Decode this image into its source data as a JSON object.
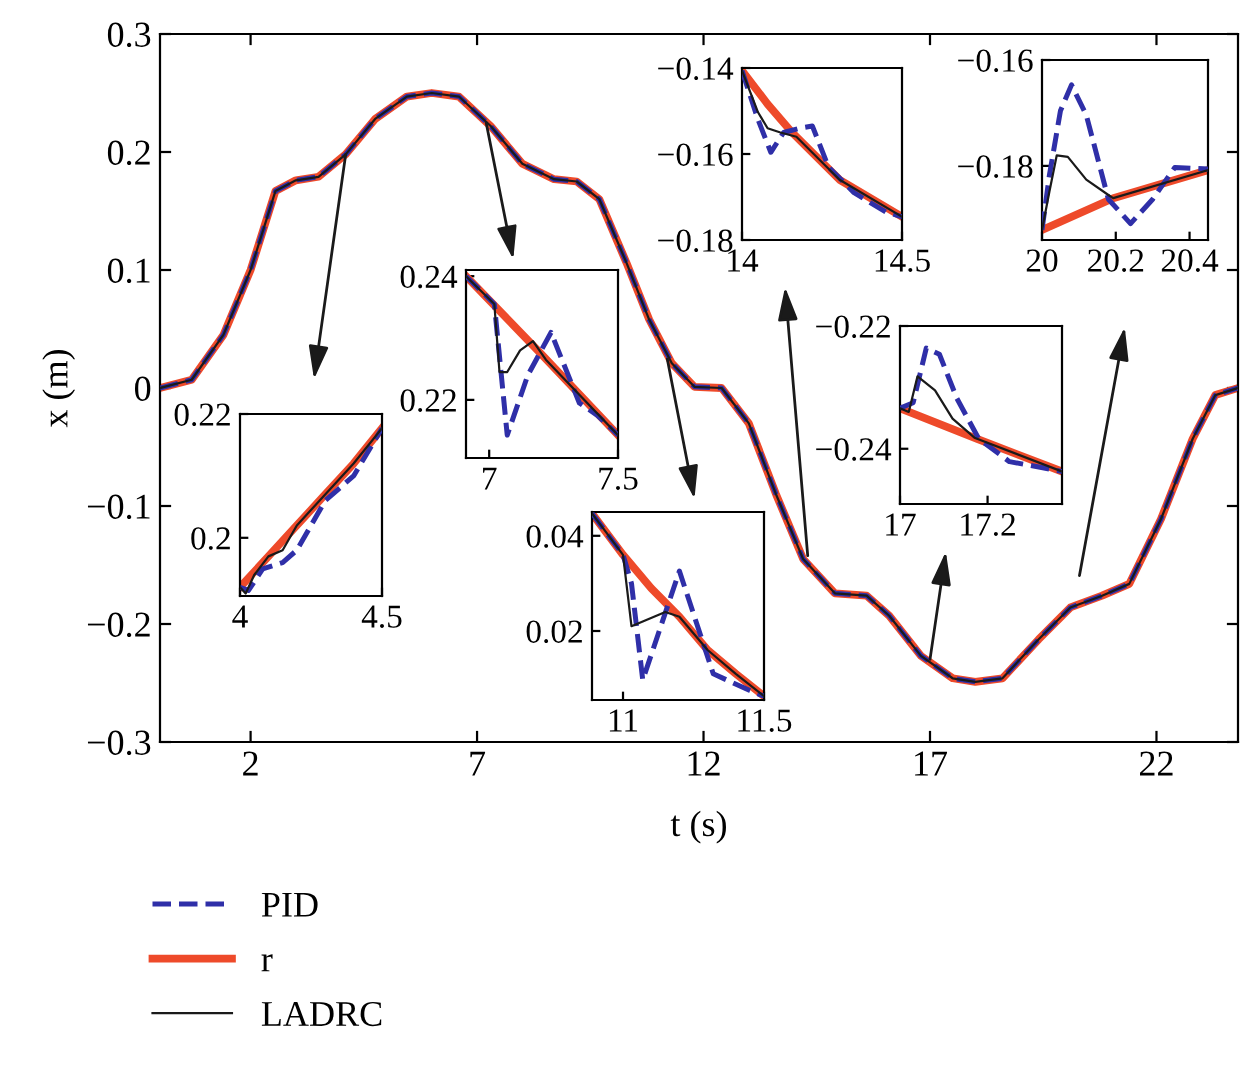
{
  "chart_data": [
    {
      "type": "line",
      "xlabel": "t (s)",
      "ylabel": "x (m)",
      "xlim": [
        0,
        23.8
      ],
      "ylim": [
        -0.3,
        0.3
      ],
      "xticks": [
        2,
        7,
        12,
        17,
        22
      ],
      "yticks": [
        -0.3,
        -0.2,
        -0.1,
        0,
        0.1,
        0.2,
        0.3
      ],
      "grid": false,
      "legend": "bottom",
      "x": [
        0,
        0.7,
        1.4,
        2,
        2.55,
        3,
        3.5,
        4.1,
        4.75,
        5.45,
        6,
        6.6,
        7.3,
        8,
        8.7,
        9.2,
        9.7,
        10.3,
        10.8,
        11.3,
        11.8,
        12.4,
        13,
        13.6,
        14.2,
        14.9,
        15.6,
        16.1,
        16.8,
        17.5,
        18,
        18.6,
        19.4,
        20.1,
        20.8,
        21.4,
        22.1,
        22.8,
        23.3,
        23.8
      ],
      "series": [
        {
          "name": "PID",
          "color": "#2f2fa8",
          "line_style": "dashed",
          "values": [
            0,
            0.007,
            0.045,
            0.1,
            0.167,
            0.176,
            0.179,
            0.198,
            0.228,
            0.247,
            0.25,
            0.247,
            0.222,
            0.19,
            0.177,
            0.175,
            0.16,
            0.106,
            0.058,
            0.021,
            0.001,
            0,
            -0.03,
            -0.09,
            -0.145,
            -0.174,
            -0.176,
            -0.193,
            -0.227,
            -0.246,
            -0.249,
            -0.246,
            -0.213,
            -0.186,
            -0.176,
            -0.166,
            -0.111,
            -0.043,
            -0.006,
            0
          ]
        },
        {
          "name": "r",
          "color": "#ee4a2a",
          "line_style": "solid",
          "values": [
            0,
            0.007,
            0.045,
            0.1,
            0.167,
            0.176,
            0.179,
            0.198,
            0.228,
            0.247,
            0.25,
            0.247,
            0.222,
            0.19,
            0.177,
            0.175,
            0.16,
            0.106,
            0.058,
            0.021,
            0.001,
            0,
            -0.03,
            -0.09,
            -0.145,
            -0.174,
            -0.176,
            -0.193,
            -0.227,
            -0.246,
            -0.249,
            -0.246,
            -0.213,
            -0.186,
            -0.176,
            -0.166,
            -0.111,
            -0.043,
            -0.006,
            0
          ]
        },
        {
          "name": "LADRC",
          "color": "#1a1a1a",
          "line_style": "solid",
          "values": [
            0,
            0.007,
            0.045,
            0.1,
            0.167,
            0.176,
            0.179,
            0.198,
            0.228,
            0.247,
            0.25,
            0.247,
            0.222,
            0.19,
            0.177,
            0.175,
            0.16,
            0.106,
            0.058,
            0.021,
            0.001,
            0,
            -0.03,
            -0.09,
            -0.145,
            -0.174,
            -0.176,
            -0.193,
            -0.227,
            -0.246,
            -0.249,
            -0.246,
            -0.213,
            -0.186,
            -0.176,
            -0.166,
            -0.111,
            -0.043,
            -0.006,
            0
          ]
        }
      ]
    },
    {
      "type": "line",
      "xlim": [
        4,
        4.5
      ],
      "ylim": [
        0.1906,
        0.22
      ],
      "xticks": [
        4,
        4.5
      ],
      "yticks": [
        0.2,
        0.22
      ],
      "grid": false,
      "series": [
        {
          "color": "#2f2fa8",
          "line_style": "dashed",
          "x": [
            4,
            4.03,
            4.08,
            4.15,
            4.2,
            4.3,
            4.35,
            4.4,
            4.5
          ],
          "values": [
            0.192,
            0.1915,
            0.195,
            0.196,
            0.198,
            0.206,
            0.208,
            0.21,
            0.2177
          ]
        },
        {
          "color": "#ee4a2a",
          "line_style": "solid",
          "x": [
            4,
            4.1,
            4.2,
            4.3,
            4.4,
            4.5
          ],
          "values": [
            0.192,
            0.197,
            0.202,
            0.207,
            0.212,
            0.2177
          ]
        },
        {
          "color": "#1a1a1a",
          "line_style": "solid",
          "x": [
            4,
            4.02,
            4.05,
            4.1,
            4.15,
            4.2,
            4.3,
            4.4,
            4.5
          ],
          "values": [
            0.192,
            0.191,
            0.194,
            0.197,
            0.198,
            0.202,
            0.207,
            0.212,
            0.2177
          ]
        }
      ]
    },
    {
      "type": "line",
      "xlim": [
        6.91,
        7.5
      ],
      "ylim": [
        0.2106,
        0.241
      ],
      "xticks": [
        7,
        7.5
      ],
      "yticks": [
        0.22,
        0.24
      ],
      "grid": false,
      "series": [
        {
          "color": "#2f2fa8",
          "line_style": "dashed",
          "x": [
            6.91,
            7.02,
            7.07,
            7.15,
            7.24,
            7.35,
            7.42,
            7.5
          ],
          "values": [
            0.24,
            0.2355,
            0.2143,
            0.224,
            0.2309,
            0.2195,
            0.2175,
            0.2143
          ]
        },
        {
          "color": "#ee4a2a",
          "line_style": "solid",
          "x": [
            6.91,
            7.2,
            7.5
          ],
          "values": [
            0.24,
            0.2275,
            0.2143
          ]
        },
        {
          "color": "#1a1a1a",
          "line_style": "solid",
          "x": [
            6.91,
            7.02,
            7.04,
            7.07,
            7.12,
            7.17,
            7.22,
            7.5
          ],
          "values": [
            0.24,
            0.2355,
            0.2245,
            0.2245,
            0.228,
            0.2295,
            0.2265,
            0.2143
          ]
        }
      ]
    },
    {
      "type": "line",
      "xlim": [
        10.89,
        11.5
      ],
      "ylim": [
        0.0055,
        0.045
      ],
      "xticks": [
        11,
        11.5
      ],
      "yticks": [
        0.02,
        0.04
      ],
      "grid": false,
      "series": [
        {
          "color": "#2f2fa8",
          "line_style": "dashed",
          "x": [
            10.89,
            11.0,
            11.03,
            11.07,
            11.2,
            11.32,
            11.45,
            11.5
          ],
          "values": [
            0.0447,
            0.036,
            0.03,
            0.0097,
            0.0326,
            0.011,
            0.0075,
            0.0063
          ]
        },
        {
          "color": "#ee4a2a",
          "line_style": "solid",
          "x": [
            10.89,
            11.0,
            11.1,
            11.2,
            11.3,
            11.4,
            11.5
          ],
          "values": [
            0.0447,
            0.036,
            0.029,
            0.023,
            0.016,
            0.011,
            0.0063
          ]
        },
        {
          "color": "#1a1a1a",
          "line_style": "solid",
          "x": [
            10.89,
            11.0,
            11.03,
            11.07,
            11.15,
            11.2,
            11.3,
            11.4,
            11.5
          ],
          "values": [
            0.0447,
            0.036,
            0.021,
            0.022,
            0.024,
            0.023,
            0.016,
            0.011,
            0.0063
          ]
        }
      ]
    },
    {
      "type": "line",
      "xlim": [
        14,
        14.5
      ],
      "ylim": [
        -0.18,
        -0.14
      ],
      "xticks": [
        14,
        14.5
      ],
      "yticks": [
        -0.18,
        -0.16,
        -0.14
      ],
      "grid": false,
      "series": [
        {
          "color": "#2f2fa8",
          "line_style": "dashed",
          "x": [
            14,
            14.05,
            14.09,
            14.13,
            14.18,
            14.22,
            14.27,
            14.35,
            14.45,
            14.5
          ],
          "values": [
            -0.1406,
            -0.152,
            -0.1596,
            -0.155,
            -0.154,
            -0.1535,
            -0.163,
            -0.169,
            -0.1735,
            -0.1746
          ]
        },
        {
          "color": "#ee4a2a",
          "line_style": "solid",
          "x": [
            14,
            14.08,
            14.155,
            14.305,
            14.5
          ],
          "values": [
            -0.1406,
            -0.1484,
            -0.1549,
            -0.166,
            -0.1746
          ]
        },
        {
          "color": "#1a1a1a",
          "line_style": "solid",
          "x": [
            14,
            14.05,
            14.08,
            14.12,
            14.17,
            14.305,
            14.5
          ],
          "values": [
            -0.1406,
            -0.1503,
            -0.154,
            -0.155,
            -0.156,
            -0.166,
            -0.1746
          ]
        }
      ]
    },
    {
      "type": "line",
      "xlim": [
        17,
        17.37
      ],
      "ylim": [
        -0.249,
        -0.22
      ],
      "xticks": [
        17,
        17.2
      ],
      "yticks": [
        -0.24,
        -0.22
      ],
      "grid": false,
      "series": [
        {
          "color": "#2f2fa8",
          "line_style": "dashed",
          "x": [
            17,
            17.03,
            17.06,
            17.09,
            17.13,
            17.18,
            17.25,
            17.32,
            17.37
          ],
          "values": [
            -0.2334,
            -0.2325,
            -0.2236,
            -0.2246,
            -0.2318,
            -0.2384,
            -0.2421,
            -0.243,
            -0.2437
          ]
        },
        {
          "color": "#ee4a2a",
          "line_style": "solid",
          "x": [
            17,
            17.176,
            17.37
          ],
          "values": [
            -0.2334,
            -0.2384,
            -0.2437
          ]
        },
        {
          "color": "#1a1a1a",
          "line_style": "solid",
          "x": [
            17,
            17.02,
            17.04,
            17.08,
            17.12,
            17.17,
            17.37
          ],
          "values": [
            -0.2334,
            -0.234,
            -0.2282,
            -0.2305,
            -0.2351,
            -0.2382,
            -0.2437
          ]
        }
      ]
    },
    {
      "type": "line",
      "xlim": [
        20,
        20.45
      ],
      "ylim": [
        -0.194,
        -0.16
      ],
      "xticks": [
        20,
        20.2,
        20.4
      ],
      "yticks": [
        -0.18,
        -0.16
      ],
      "grid": false,
      "series": [
        {
          "color": "#2f2fa8",
          "line_style": "dashed",
          "x": [
            20,
            20.02,
            20.05,
            20.08,
            20.12,
            20.18,
            20.24,
            20.3,
            20.36,
            20.45
          ],
          "values": [
            -0.1921,
            -0.1818,
            -0.1696,
            -0.1647,
            -0.1704,
            -0.1863,
            -0.1909,
            -0.1863,
            -0.1803,
            -0.1806
          ]
        },
        {
          "color": "#ee4a2a",
          "line_style": "solid",
          "x": [
            20,
            20.193,
            20.45
          ],
          "values": [
            -0.1921,
            -0.1861,
            -0.1808
          ]
        },
        {
          "color": "#1a1a1a",
          "line_style": "solid",
          "x": [
            20,
            20.02,
            20.04,
            20.07,
            20.12,
            20.18,
            20.193,
            20.45
          ],
          "values": [
            -0.1921,
            -0.1849,
            -0.178,
            -0.1783,
            -0.1826,
            -0.1855,
            -0.1861,
            -0.1808
          ]
        }
      ]
    }
  ]
}
